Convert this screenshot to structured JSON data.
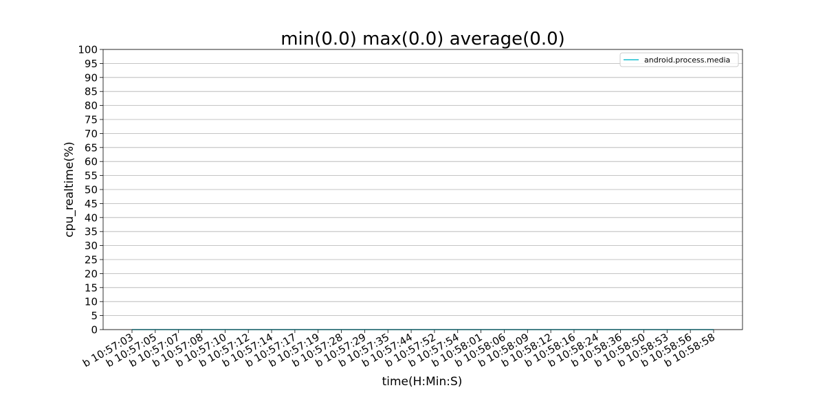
{
  "chart_data": {
    "type": "line",
    "title": "min(0.0) max(0.0) average(0.0)",
    "xlabel": "time(H:Min:S)",
    "ylabel": "cpu_realtime(%)",
    "categories": [
      "b 10:57:03",
      "b 10:57:05",
      "b 10:57:07",
      "b 10:57:08",
      "b 10:57:10",
      "b 10:57:12",
      "b 10:57:14",
      "b 10:57:17",
      "b 10:57:19",
      "b 10:57:28",
      "b 10:57:29",
      "b 10:57:35",
      "b 10:57:44",
      "b 10:57:52",
      "b 10:57:54",
      "b 10:58:01",
      "b 10:58:06",
      "b 10:58:09",
      "b 10:58:12",
      "b 10:58:16",
      "b 10:58:24",
      "b 10:58:36",
      "b 10:58:50",
      "b 10:58:53",
      "b 10:58:56",
      "b 10:58:58"
    ],
    "series": [
      {
        "name": "android.process.media",
        "color": "#17becf",
        "values": [
          0,
          0,
          0,
          0,
          0,
          0,
          0,
          0,
          0,
          0,
          0,
          0,
          0,
          0,
          0,
          0,
          0,
          0,
          0,
          0,
          0,
          0,
          0,
          0,
          0,
          0
        ]
      }
    ],
    "ylim": [
      0,
      100
    ],
    "yticks": [
      0,
      5,
      10,
      15,
      20,
      25,
      30,
      35,
      40,
      45,
      50,
      55,
      60,
      65,
      70,
      75,
      80,
      85,
      90,
      95,
      100
    ],
    "grid": "y",
    "legend": "upper right"
  }
}
